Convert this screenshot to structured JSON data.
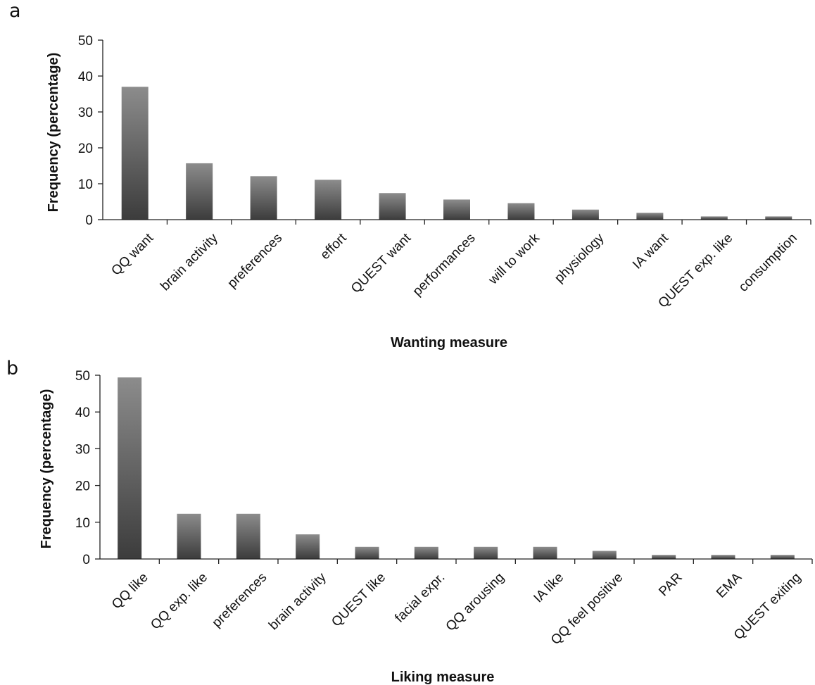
{
  "chart_data": [
    {
      "panel": "a",
      "type": "bar",
      "xlabel": "Wanting measure",
      "ylabel": "Frequency (percentage)",
      "ylim": [
        0,
        50
      ],
      "yticks": [
        0,
        10,
        20,
        30,
        40,
        50
      ],
      "grid": false,
      "categories": [
        "QQ want",
        "brain activity",
        "preferences",
        "effort",
        "QUEST want",
        "performances",
        "will to work",
        "physiology",
        "IA want",
        "QUEST exp. like",
        "consumption"
      ],
      "values": [
        37,
        15.7,
        12.1,
        11.1,
        7.4,
        5.6,
        4.6,
        2.8,
        1.9,
        0.9,
        0.9
      ]
    },
    {
      "panel": "b",
      "type": "bar",
      "xlabel": "Liking measure",
      "ylabel": "Frequency (percentage)",
      "ylim": [
        0,
        50
      ],
      "yticks": [
        0,
        10,
        20,
        30,
        40,
        50
      ],
      "grid": false,
      "categories": [
        "QQ like",
        "QQ exp. like",
        "preferences",
        "brain activity",
        "QUEST like",
        "facial expr.",
        "QQ arousing",
        "IA like",
        "QQ feel positive",
        "PAR",
        "EMA",
        "QUEST exiting"
      ],
      "values": [
        49.4,
        12.3,
        12.3,
        6.7,
        3.3,
        3.3,
        3.3,
        3.3,
        2.2,
        1.1,
        1.1,
        1.1
      ]
    }
  ],
  "colors": {
    "bar_top": "#8c8c8c",
    "bar_bottom": "#3c3c3c",
    "axis": "#222222",
    "text": "#111111"
  }
}
